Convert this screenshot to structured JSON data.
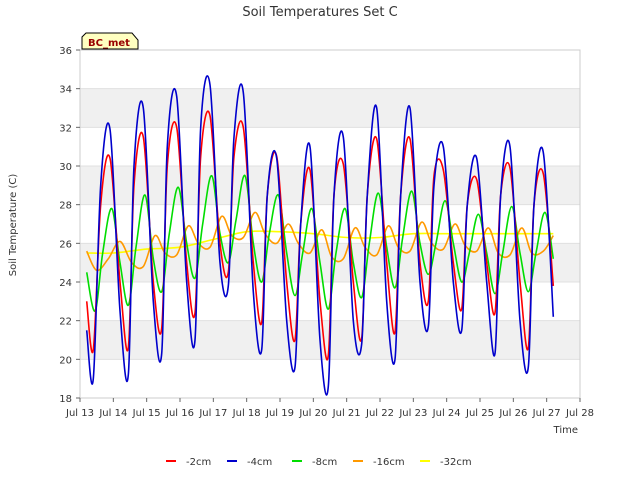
{
  "chart_data": {
    "type": "line",
    "title": "Soil Temperatures Set C",
    "xlabel": "Time",
    "ylabel": "Soil Temperature (C)",
    "station_label": "BC_met",
    "ylim": [
      18,
      36
    ],
    "yticks": [
      18,
      20,
      22,
      24,
      26,
      28,
      30,
      32,
      34,
      36
    ],
    "xlim": [
      13,
      28
    ],
    "xticks": [
      {
        "v": 13,
        "label": "Jul 13"
      },
      {
        "v": 14,
        "label": "Jul 14"
      },
      {
        "v": 15,
        "label": "Jul 15"
      },
      {
        "v": 16,
        "label": "Jul 16"
      },
      {
        "v": 17,
        "label": "Jul 17"
      },
      {
        "v": 18,
        "label": "Jul 18"
      },
      {
        "v": 19,
        "label": "Jul 19"
      },
      {
        "v": 20,
        "label": "Jul 20"
      },
      {
        "v": 21,
        "label": "Jul 21"
      },
      {
        "v": 22,
        "label": "Jul 22"
      },
      {
        "v": 23,
        "label": "Jul 23"
      },
      {
        "v": 24,
        "label": "Jul 24"
      },
      {
        "v": 25,
        "label": "Jul 25"
      },
      {
        "v": 26,
        "label": "Jul 26"
      },
      {
        "v": 27,
        "label": "Jul 27"
      },
      {
        "v": 28,
        "label": "Jul 28"
      }
    ],
    "grid": "horizontal bands",
    "legend_position": "bottom",
    "series": [
      {
        "name": "-2cm",
        "color": "#ff0000",
        "x": [
          13.2,
          13.4,
          13.62,
          13.9,
          14.2,
          14.45,
          14.62,
          14.9,
          15.2,
          15.45,
          15.62,
          15.9,
          16.2,
          16.45,
          16.62,
          16.9,
          17.2,
          17.45,
          17.62,
          17.9,
          18.2,
          18.45,
          18.62,
          18.9,
          19.2,
          19.45,
          19.62,
          19.9,
          20.2,
          20.45,
          20.62,
          20.9,
          21.2,
          21.45,
          21.62,
          21.9,
          22.2,
          22.45,
          22.62,
          22.9,
          23.2,
          23.45,
          23.62,
          23.9,
          24.2,
          24.45,
          24.62,
          24.9,
          25.2,
          25.45,
          25.62,
          25.9,
          26.2,
          26.45,
          26.62,
          26.9,
          27.2
        ],
        "y": [
          23,
          20.5,
          28,
          30.4,
          24,
          20.6,
          29,
          31.5,
          24,
          21.6,
          30,
          32,
          25,
          22.4,
          30.5,
          32.6,
          26,
          24.5,
          30.5,
          32,
          25,
          21.9,
          28.5,
          30.5,
          24,
          21,
          27,
          29.8,
          23,
          20.2,
          28.5,
          30.1,
          24,
          21.1,
          28.5,
          31.4,
          25,
          21.4,
          28.5,
          31.4,
          25,
          23,
          29.5,
          29.8,
          25,
          22.6,
          28,
          29.3,
          25,
          22.4,
          28.5,
          29.9,
          24,
          20.6,
          28,
          29.6,
          23.8
        ]
      },
      {
        "name": "-4cm",
        "color": "#0000cc",
        "x": [
          13.2,
          13.4,
          13.62,
          13.9,
          14.2,
          14.45,
          14.62,
          14.9,
          15.2,
          15.45,
          15.62,
          15.9,
          16.2,
          16.45,
          16.62,
          16.9,
          17.2,
          17.45,
          17.62,
          17.9,
          18.2,
          18.45,
          18.62,
          18.9,
          19.2,
          19.45,
          19.62,
          19.9,
          20.2,
          20.45,
          20.62,
          20.9,
          21.2,
          21.45,
          21.62,
          21.9,
          22.2,
          22.45,
          22.62,
          22.9,
          23.2,
          23.45,
          23.62,
          23.9,
          24.2,
          24.45,
          24.62,
          24.9,
          25.2,
          25.45,
          25.62,
          25.9,
          26.2,
          26.45,
          26.62,
          26.9,
          27.2
        ],
        "y": [
          21.5,
          19,
          29,
          31.9,
          22.5,
          19.2,
          30,
          33,
          23,
          20.3,
          31,
          33.6,
          24,
          21,
          32,
          34.2,
          25,
          23.8,
          31.5,
          33.8,
          23.5,
          20.5,
          28.5,
          30.4,
          22,
          19.6,
          27,
          31,
          21,
          18.6,
          28.5,
          31.5,
          22,
          20.8,
          28.5,
          33,
          23,
          20,
          28.5,
          33,
          24,
          21.7,
          29,
          31,
          24,
          21.5,
          28,
          30.4,
          24,
          20.3,
          28.5,
          31,
          22,
          19.6,
          28,
          30.7,
          22.2
        ]
      },
      {
        "name": "-8cm",
        "color": "#00dd00",
        "x": [
          13.2,
          13.45,
          13.68,
          13.95,
          14.2,
          14.45,
          14.68,
          14.95,
          15.2,
          15.45,
          15.68,
          15.95,
          16.2,
          16.45,
          16.68,
          16.95,
          17.2,
          17.45,
          17.68,
          17.95,
          18.2,
          18.45,
          18.68,
          18.95,
          19.2,
          19.45,
          19.68,
          19.95,
          20.2,
          20.45,
          20.68,
          20.95,
          21.2,
          21.45,
          21.68,
          21.95,
          22.2,
          22.45,
          22.68,
          22.95,
          23.2,
          23.45,
          23.68,
          23.95,
          24.2,
          24.45,
          24.68,
          24.95,
          25.2,
          25.45,
          25.68,
          25.95,
          26.2,
          26.45,
          26.68,
          26.95,
          27.2
        ],
        "y": [
          24.5,
          22.5,
          25.5,
          27.8,
          25,
          22.8,
          25.8,
          28.5,
          25.2,
          23.5,
          26.5,
          28.9,
          26,
          24.2,
          27,
          29.5,
          26.5,
          25,
          27.2,
          29.5,
          26,
          24,
          26.5,
          28.5,
          25.5,
          23.3,
          25.5,
          27.8,
          25,
          22.6,
          25.5,
          27.8,
          25,
          23.2,
          26,
          28.6,
          25.8,
          23.7,
          26.3,
          28.7,
          26,
          24.4,
          26,
          28.2,
          26,
          24,
          25.5,
          27.5,
          25.5,
          23.4,
          25.5,
          27.9,
          25.5,
          23.5,
          25.5,
          27.6,
          25.2
        ]
      },
      {
        "name": "-16cm",
        "color": "#ff9900",
        "x": [
          13.2,
          13.5,
          13.85,
          14.2,
          14.55,
          14.9,
          15.25,
          15.55,
          15.9,
          16.25,
          16.55,
          16.9,
          17.25,
          17.55,
          17.9,
          18.25,
          18.55,
          18.9,
          19.25,
          19.55,
          19.9,
          20.25,
          20.55,
          20.9,
          21.25,
          21.55,
          21.9,
          22.25,
          22.55,
          22.9,
          23.25,
          23.55,
          23.9,
          24.25,
          24.55,
          24.9,
          25.25,
          25.55,
          25.9,
          26.25,
          26.55,
          26.9,
          27.2
        ],
        "y": [
          25.6,
          24.6,
          25.2,
          26.1,
          25,
          24.8,
          26.4,
          25.5,
          25.4,
          26.9,
          26,
          25.8,
          27.4,
          26.4,
          26.3,
          27.6,
          26.5,
          26,
          27,
          26,
          25.5,
          26.7,
          25.3,
          25.2,
          26.8,
          25.8,
          25.4,
          26.9,
          25.8,
          25.6,
          27.1,
          26,
          25.7,
          27,
          25.9,
          25.6,
          26.8,
          25.5,
          25.4,
          26.8,
          25.5,
          25.6,
          26.4
        ]
      },
      {
        "name": "-32cm",
        "color": "#ffff00",
        "x": [
          13.2,
          14.0,
          15.0,
          16.0,
          17.0,
          18.0,
          19.0,
          20.0,
          21.0,
          22.0,
          23.0,
          24.0,
          25.0,
          26.0,
          27.2
        ],
        "y": [
          25.5,
          25.5,
          25.7,
          25.8,
          26.2,
          26.6,
          26.6,
          26.5,
          26.3,
          26.3,
          26.5,
          26.5,
          26.5,
          26.5,
          26.5
        ]
      }
    ]
  }
}
